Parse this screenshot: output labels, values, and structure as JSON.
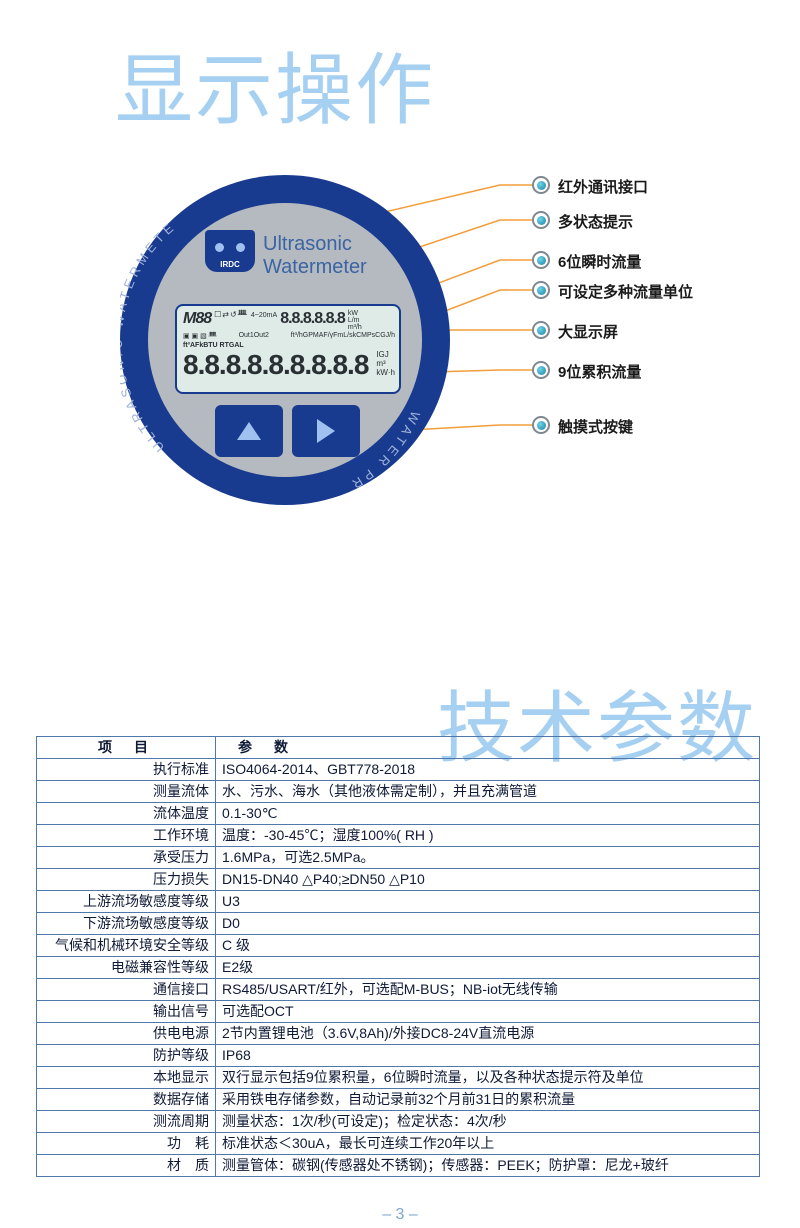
{
  "titles": {
    "display_op": "显示操作",
    "tech_spec": "技术参数"
  },
  "meter": {
    "ring_text_left": "ULTRASONIC WATERMETER",
    "ring_text_right": "WATER PROOF",
    "ir_label": "IRDC",
    "title1": "Ultrasonic",
    "title2": "Watermeter",
    "lcd": {
      "m88": "M88",
      "row_icons": "☐⇄↺ᚙ",
      "mid_label": "4~20mA",
      "small_num": "8.8.8.8.8.8",
      "small_unit1": "kW",
      "small_unit2": "L/m",
      "small_unit3": "m³/h",
      "row1b_left": "▣ ▣ ▧ ᚙ",
      "row1b_mid": "Out1Out2",
      "row1b_right": "ft³/hGPMAF/γFmL/skCMPsCGJ/h",
      "row2": "ft³AFkBTU RTGAL",
      "big_num": "8.8.8.8.8.8.8.8.8",
      "big_unit1": "IGJ",
      "big_unit2": "m³",
      "big_unit3": "kW·h"
    }
  },
  "callouts": [
    {
      "label": "红外通讯接口"
    },
    {
      "label": "多状态提示"
    },
    {
      "label": "6位瞬时流量"
    },
    {
      "label": "可设定多种流量单位"
    },
    {
      "label": "大显示屏"
    },
    {
      "label": "9位累积流量"
    },
    {
      "label": "触摸式按键"
    }
  ],
  "spec_headers": {
    "col1": "项目",
    "col2": "参数"
  },
  "spec_rows": [
    {
      "name": "执行标准",
      "val": "ISO4064-2014、GBT778-2018"
    },
    {
      "name": "测量流体",
      "val": "水、污水、海水（其他液体需定制），并且充满管道"
    },
    {
      "name": "流体温度",
      "val": "0.1-30℃"
    },
    {
      "name": "工作环境",
      "val": "温度：-30-45℃；湿度100%( RH )"
    },
    {
      "name": "承受压力",
      "val": "1.6MPa，可选2.5MPa。"
    },
    {
      "name": "压力损失",
      "val": "DN15-DN40 △P40;≥DN50 △P10"
    },
    {
      "name": "上游流场敏感度等级",
      "val": "U3"
    },
    {
      "name": "下游流场敏感度等级",
      "val": "D0"
    },
    {
      "name": "气候和机械环境安全等级",
      "val": "C 级"
    },
    {
      "name": "电磁兼容性等级",
      "val": "E2级"
    },
    {
      "name": "通信接口",
      "val": "RS485/USART/红外，可选配M-BUS；NB-iot无线传输"
    },
    {
      "name": "输出信号",
      "val": "可选配OCT"
    },
    {
      "name": "供电电源",
      "val": "2节内置锂电池（3.6V,8Ah)/外接DC8-24V直流电源"
    },
    {
      "name": "防护等级",
      "val": "IP68"
    },
    {
      "name": "本地显示",
      "val": "双行显示包括9位累积量，6位瞬时流量，以及各种状态提示符及单位"
    },
    {
      "name": "数据存储",
      "val": "采用铁电存储参数，自动记录前32个月前31日的累积流量"
    },
    {
      "name": "测流周期",
      "val": "测量状态：1次/秒(可设定)；检定状态：4次/秒"
    },
    {
      "name": "功　耗",
      "val": "标准状态＜30uA，最长可连续工作20年以上"
    },
    {
      "name": "材　质",
      "val": "测量管体：碳钢(传感器处不锈钢)；传感器：PEEK；防护罩：尼龙+玻纤"
    }
  ],
  "page_number": "– 3 –",
  "colors": {
    "title": "#a6d0f2",
    "ring": "#183a8f",
    "face": "#b5bac1",
    "accent": "#3a64a2",
    "line": "#f39d3a",
    "dot_outer": "#808890",
    "dot_inner": "#1f7eaa",
    "table_border": "#4f77a9"
  }
}
